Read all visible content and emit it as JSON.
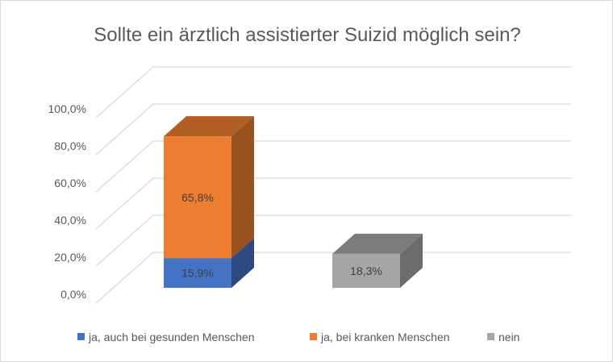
{
  "chart_data": {
    "type": "bar",
    "stacked": true,
    "three_d": true,
    "title": "Sollte ein ärztlich assistierter Suizid möglich sein?",
    "categories": [
      "",
      ""
    ],
    "series": [
      {
        "name": "ja, auch bei gesunden Menschen",
        "values": [
          15.9,
          null
        ],
        "labels": [
          "15,9%",
          ""
        ],
        "color": "#4472C4"
      },
      {
        "name": "ja, bei kranken Menschen",
        "values": [
          65.8,
          null
        ],
        "labels": [
          "65,8%",
          ""
        ],
        "color": "#ED7D31"
      },
      {
        "name": "nein",
        "values": [
          null,
          18.3
        ],
        "labels": [
          "",
          "18,3%"
        ],
        "color": "#A5A5A5"
      }
    ],
    "yticks": [
      "0,0%",
      "20,0%",
      "40,0%",
      "60,0%",
      "80,0%",
      "100,0%"
    ],
    "ylim": [
      0,
      100
    ],
    "grid": true,
    "legend": "bottom"
  }
}
